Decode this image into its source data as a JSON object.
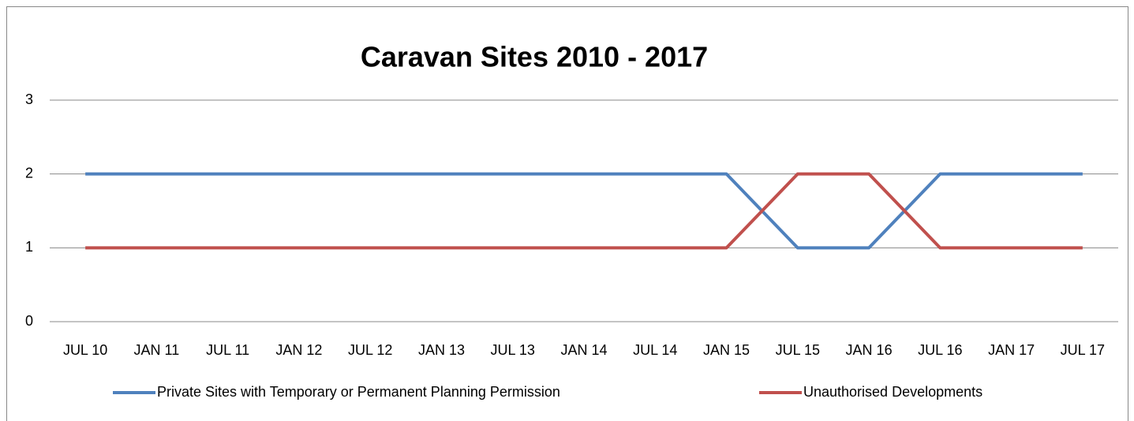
{
  "chart_data": {
    "type": "line",
    "title": "Caravan Sites 2010 - 2017",
    "categories": [
      "JUL 10",
      "JAN 11",
      "JUL 11",
      "JAN 12",
      "JUL 12",
      "JAN 13",
      "JUL 13",
      "JAN 14",
      "JUL 14",
      "JAN 15",
      "JUL 15",
      "JAN 16",
      "JUL 16",
      "JAN 17",
      "JUL 17"
    ],
    "series": [
      {
        "name": "Private Sites with Temporary or Permanent Planning Permission",
        "color": "#4f81bd",
        "values": [
          2,
          2,
          2,
          2,
          2,
          2,
          2,
          2,
          2,
          2,
          1,
          1,
          2,
          2,
          2
        ]
      },
      {
        "name": "Unauthorised Developments",
        "color": "#c0504d",
        "values": [
          1,
          1,
          1,
          1,
          1,
          1,
          1,
          1,
          1,
          1,
          2,
          2,
          1,
          1,
          1
        ]
      }
    ],
    "ylim": [
      0,
      3
    ],
    "yticks": [
      0,
      1,
      2,
      3
    ],
    "grid": true,
    "legend": "bottom"
  }
}
